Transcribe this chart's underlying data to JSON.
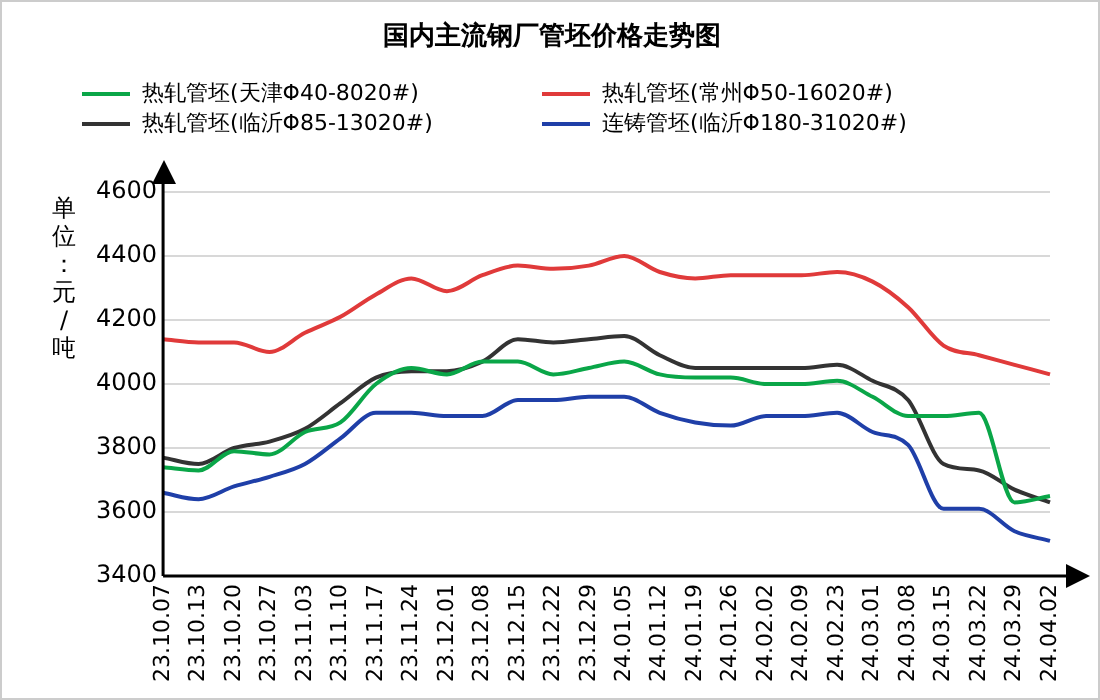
{
  "chart_data": {
    "type": "line",
    "title": "国内主流钢厂管坯价格走势图",
    "ylabel": "单位：元/吨",
    "categories": [
      "23.10.07",
      "23.10.13",
      "23.10.20",
      "23.10.27",
      "23.11.03",
      "23.11.10",
      "23.11.17",
      "23.11.24",
      "23.12.01",
      "23.12.08",
      "23.12.15",
      "23.12.22",
      "23.12.29",
      "24.01.05",
      "24.01.12",
      "24.01.19",
      "24.01.26",
      "24.02.02",
      "24.02.09",
      "24.02.23",
      "24.03.01",
      "24.03.08",
      "24.03.15",
      "24.03.22",
      "24.03.29",
      "24.04.02"
    ],
    "series": [
      {
        "name": "热轧管坯(天津Φ40-8020#)",
        "color": "#0aa648",
        "values": [
          3740,
          3730,
          3790,
          3780,
          3850,
          3880,
          4000,
          4050,
          4030,
          4070,
          4070,
          4030,
          4050,
          4070,
          4030,
          4020,
          4020,
          4000,
          4000,
          4010,
          3960,
          3900,
          3900,
          3910,
          3630,
          3650
        ]
      },
      {
        "name": "热轧管坯(常州Φ50-16020#)",
        "color": "#e03a3a",
        "values": [
          4140,
          4130,
          4130,
          4100,
          4160,
          4210,
          4280,
          4330,
          4290,
          4340,
          4370,
          4360,
          4370,
          4400,
          4350,
          4330,
          4340,
          4340,
          4340,
          4350,
          4320,
          4240,
          4120,
          4090,
          4060,
          4030
        ]
      },
      {
        "name": "热轧管坯(临沂Φ85-13020#)",
        "color": "#333333",
        "values": [
          3770,
          3750,
          3800,
          3820,
          3860,
          3940,
          4020,
          4040,
          4040,
          4070,
          4140,
          4130,
          4140,
          4150,
          4090,
          4050,
          4050,
          4050,
          4050,
          4060,
          4010,
          3950,
          3750,
          3730,
          3670,
          3630
        ]
      },
      {
        "name": "连铸管坯(临沂Φ180-31020#)",
        "color": "#1f3fa8",
        "values": [
          3660,
          3640,
          3680,
          3710,
          3750,
          3830,
          3910,
          3910,
          3900,
          3900,
          3950,
          3950,
          3960,
          3960,
          3910,
          3880,
          3870,
          3900,
          3900,
          3910,
          3850,
          3810,
          3610,
          3610,
          3540,
          3510
        ]
      }
    ],
    "ylim": [
      3400,
      4600
    ],
    "yticks": [
      3400,
      3600,
      3800,
      4000,
      4200,
      4400,
      4600
    ],
    "grid": "y",
    "legend": "top",
    "marker": "none",
    "line_style": "solid"
  }
}
